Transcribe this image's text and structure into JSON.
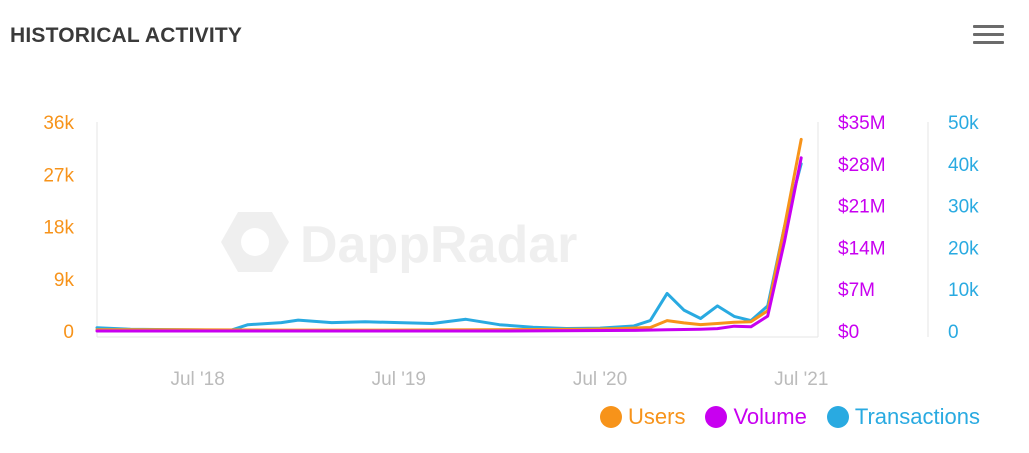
{
  "header": {
    "title": "HISTORICAL ACTIVITY",
    "menu_icon": "hamburger-menu-icon"
  },
  "watermark": {
    "text": "DappRadar"
  },
  "colors": {
    "users": "#f7931a",
    "volume": "#c800f0",
    "transactions": "#29aae1",
    "axis_label": "#bbbbbb",
    "grid_line": "#e6e6e6"
  },
  "chart_data": {
    "type": "line",
    "x_ticks": [
      "Jul '18",
      "Jul '19",
      "Jul '20",
      "Jul '21"
    ],
    "xlim": [
      "2018-01",
      "2021-08"
    ],
    "grid": false,
    "legend_position": "bottom-right",
    "axes": {
      "users": {
        "position": "left",
        "ticks": [
          "0",
          "9k",
          "18k",
          "27k",
          "36k"
        ],
        "range": [
          0,
          36000
        ]
      },
      "volume": {
        "position": "right",
        "ticks": [
          "$0",
          "$7M",
          "$14M",
          "$21M",
          "$28M",
          "$35M"
        ],
        "range": [
          0,
          35000000
        ]
      },
      "transactions": {
        "position": "right",
        "ticks": [
          "0",
          "10k",
          "20k",
          "30k",
          "40k",
          "50k"
        ],
        "range": [
          0,
          50000
        ]
      }
    },
    "series": [
      {
        "name": "Transactions",
        "axis": "transactions",
        "x": [
          "2018-01",
          "2018-03",
          "2018-06",
          "2018-09",
          "2018-10",
          "2018-12",
          "2019-01",
          "2019-03",
          "2019-05",
          "2019-07",
          "2019-09",
          "2019-11",
          "2020-01",
          "2020-03",
          "2020-05",
          "2020-07",
          "2020-09",
          "2020-10",
          "2020-11",
          "2020-12",
          "2021-01",
          "2021-02",
          "2021-03",
          "2021-04",
          "2021-05",
          "2021-06",
          "2021-07"
        ],
        "values": [
          800,
          400,
          300,
          200,
          1500,
          2000,
          2600,
          2000,
          2200,
          2000,
          1800,
          2800,
          1500,
          900,
          600,
          700,
          1200,
          2500,
          9000,
          5000,
          3000,
          6000,
          3500,
          2500,
          6000,
          25000,
          40000
        ]
      },
      {
        "name": "Users",
        "axis": "users",
        "x": [
          "2018-01",
          "2018-06",
          "2018-12",
          "2019-06",
          "2019-12",
          "2020-06",
          "2020-08",
          "2020-10",
          "2020-11",
          "2020-12",
          "2021-01",
          "2021-02",
          "2021-03",
          "2021-04",
          "2021-05",
          "2021-06",
          "2021-07"
        ],
        "values": [
          200,
          200,
          150,
          150,
          200,
          300,
          400,
          600,
          1800,
          1400,
          1100,
          1300,
          1500,
          1600,
          3500,
          18000,
          33000
        ]
      },
      {
        "name": "Volume",
        "axis": "volume",
        "x": [
          "2018-01",
          "2019-01",
          "2020-01",
          "2020-09",
          "2020-11",
          "2021-01",
          "2021-02",
          "2021-03",
          "2021-04",
          "2021-05",
          "2021-06",
          "2021-07"
        ],
        "values": [
          0,
          0,
          0,
          100000,
          200000,
          300000,
          400000,
          800000,
          700000,
          2500000,
          15000000,
          29000000
        ]
      }
    ]
  }
}
